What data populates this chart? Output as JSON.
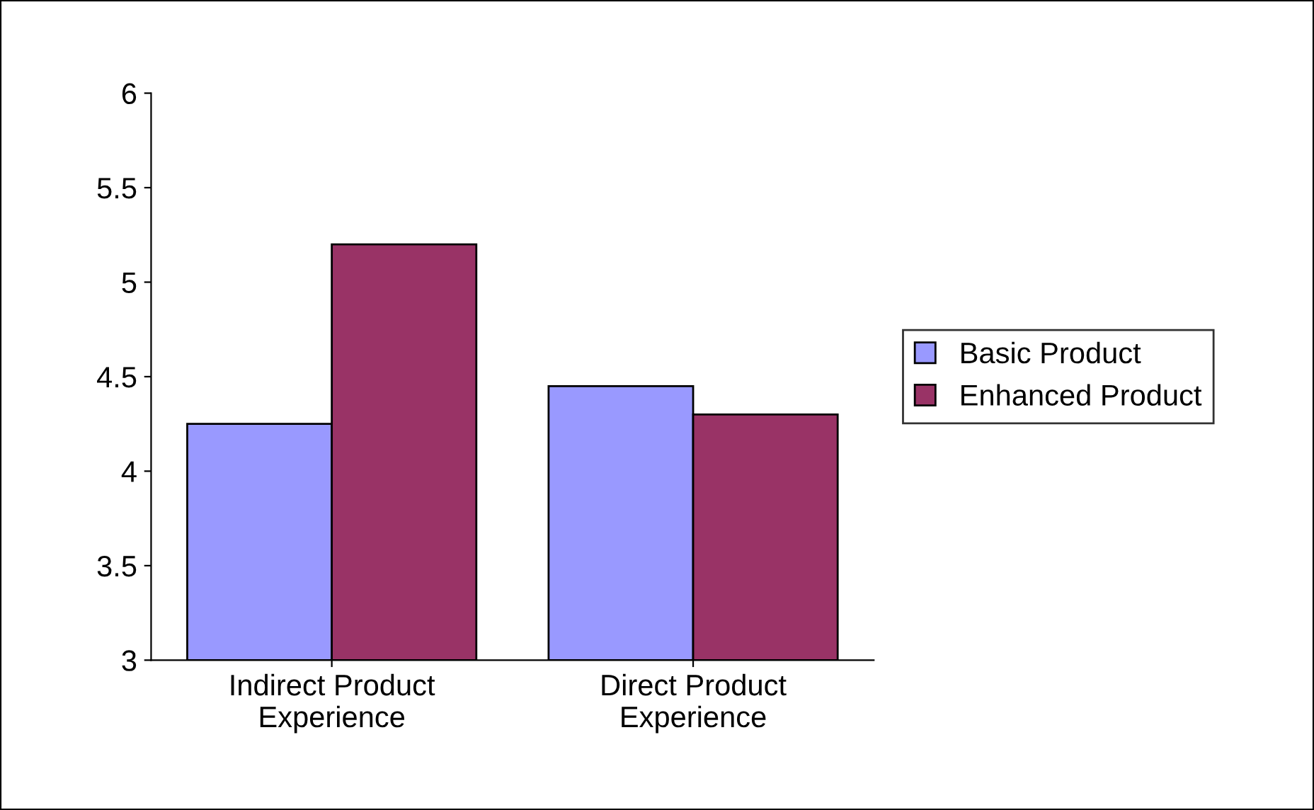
{
  "chart_data": {
    "type": "bar",
    "categories": [
      "Indirect Product\nExperience",
      "Direct Product\nExperience"
    ],
    "series": [
      {
        "name": "Basic Product",
        "color": "#9999ff",
        "values": [
          4.25,
          4.45
        ]
      },
      {
        "name": "Enhanced Product",
        "color": "#993366",
        "values": [
          5.2,
          4.3
        ]
      }
    ],
    "ylim": [
      3,
      6
    ],
    "yticks": [
      3,
      3.5,
      4,
      4.5,
      5,
      5.5,
      6
    ],
    "grid": false,
    "legend": "right"
  }
}
